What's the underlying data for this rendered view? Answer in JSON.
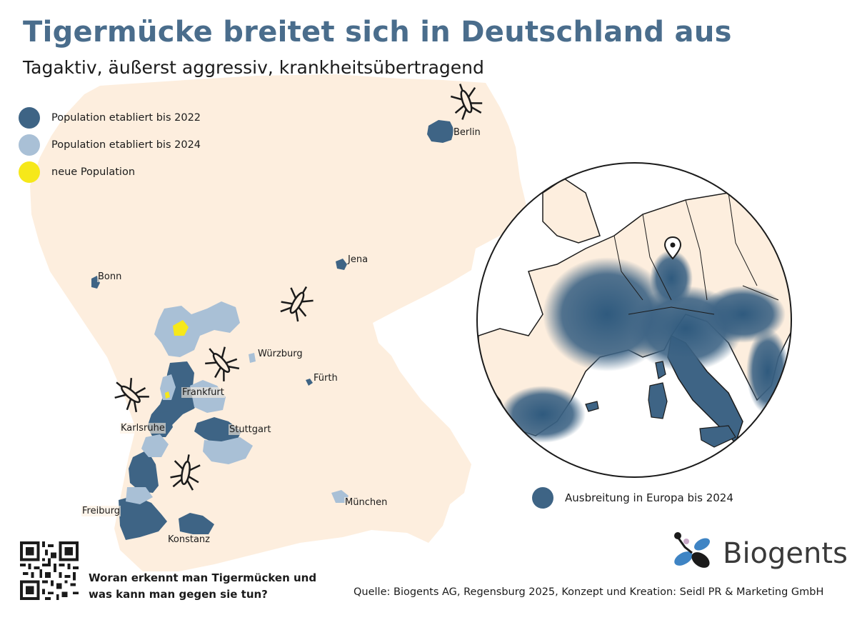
{
  "header": {
    "title": "Tigermücke breitet sich in Deutschland aus",
    "subtitle": "Tagaktiv, äußerst aggressiv, krankheitsübertragend"
  },
  "legend": [
    {
      "label": "Population etabliert bis 2022",
      "color": "#3e6485"
    },
    {
      "label": "Population etabliert bis 2024",
      "color": "#a9c0d6"
    },
    {
      "label": "neue Population",
      "color": "#f6e81a"
    }
  ],
  "cities": {
    "berlin": "Berlin",
    "bonn": "Bonn",
    "jena": "Jena",
    "wuerzburg": "Würzburg",
    "fuerth": "Fürth",
    "frankfurt": "Frankfurt",
    "karlsruhe": "Karlsruhe",
    "stuttgart": "Stuttgart",
    "freiburg": "Freiburg",
    "muenchen": "München",
    "konstanz": "Konstanz"
  },
  "europe_legend": {
    "label": "Ausbreitung in Europa bis 2024",
    "color": "#3e6485"
  },
  "footer": {
    "qr_question_line1": "Woran erkennt man Tigermücken und",
    "qr_question_line2": "was kann man gegen sie tun?",
    "source": "Quelle: Biogents AG, Regensburg 2025, Konzept und Kreation: Seidl PR & Marketing GmbH"
  },
  "logo": {
    "text": "Biogents"
  },
  "colors": {
    "land": "#fdeede",
    "established_2022": "#3e6485",
    "established_2024": "#a9c0d6",
    "new_population": "#f6e81a",
    "title": "#4a6d8c"
  },
  "icons": [
    "mosquito-icon",
    "location-pin-icon",
    "qr-code-icon",
    "biogents-logo-icon"
  ]
}
